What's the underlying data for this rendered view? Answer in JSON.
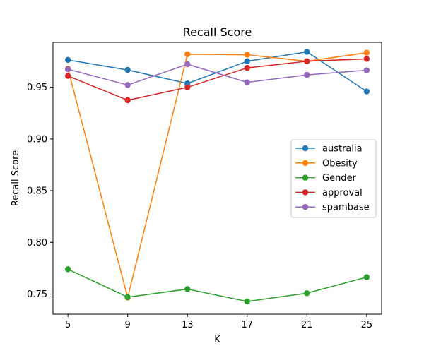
{
  "chart_data": {
    "type": "line",
    "title": "Recall Score",
    "xlabel": "K",
    "ylabel": "Recall Score",
    "x": [
      5,
      9,
      13,
      17,
      21,
      25
    ],
    "x_ticks": [
      "5",
      "9",
      "13",
      "17",
      "21",
      "25"
    ],
    "y_ticks": [
      "0.75",
      "0.80",
      "0.85",
      "0.90",
      "0.95"
    ],
    "y_tick_values": [
      0.75,
      0.8,
      0.85,
      0.9,
      0.95
    ],
    "xlim": [
      4.0,
      26.0
    ],
    "ylim": [
      0.7305,
      0.9935
    ],
    "grid": false,
    "legend": "center-right",
    "series": [
      {
        "name": "australia",
        "color": "#1f77b4",
        "values": [
          0.9765,
          0.9668,
          0.9537,
          0.9752,
          0.9843,
          0.946
        ]
      },
      {
        "name": "Obesity",
        "color": "#ff7f0e",
        "values": [
          0.968,
          0.7465,
          0.982,
          0.9815,
          0.9752,
          0.9835
        ]
      },
      {
        "name": "Gender",
        "color": "#2ca02c",
        "values": [
          0.774,
          0.747,
          0.7548,
          0.7428,
          0.7508,
          0.7663
        ]
      },
      {
        "name": "approval",
        "color": "#d62728",
        "values": [
          0.961,
          0.9375,
          0.95,
          0.9688,
          0.9752,
          0.9775
        ]
      },
      {
        "name": "spambase",
        "color": "#9467bd",
        "values": [
          0.9675,
          0.9522,
          0.9723,
          0.9548,
          0.962,
          0.9665
        ]
      }
    ]
  }
}
